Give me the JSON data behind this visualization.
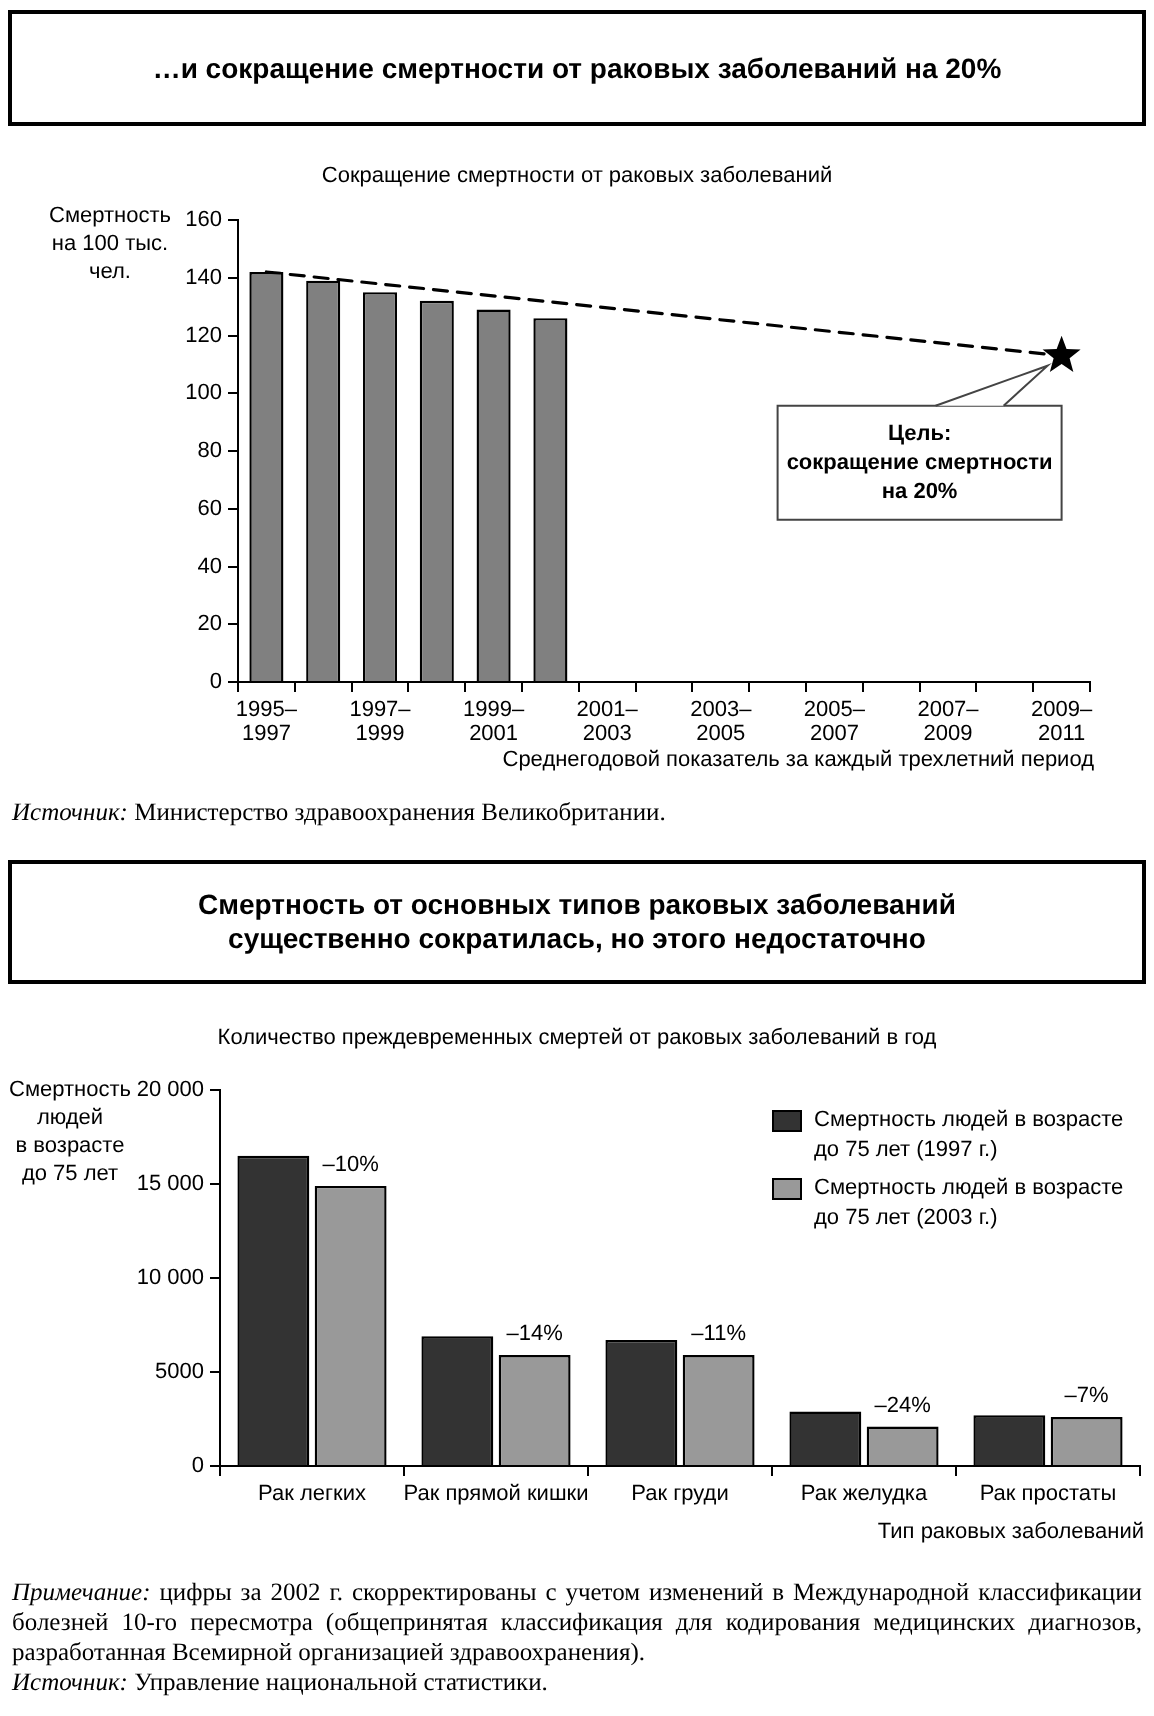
{
  "chart_data": [
    {
      "type": "bar",
      "title": "…и сокращение смертности от раковых заболеваний на 20%",
      "subtitle": "Сокращение смертности от раковых заболеваний",
      "xlabel": "Среднегодовой показатель за каждый трехлетний период",
      "ylabel": "Смертность\nна 100 тыс.\nчел.",
      "categories": [
        "1995–1997",
        null,
        "1997–1999",
        null,
        "1999–2001",
        null,
        "2001–2003",
        null,
        "2003–2005",
        null,
        "2005–2007",
        null,
        "2007–2009",
        null,
        "2009–2011"
      ],
      "series": [
        {
          "type": "bar",
          "color": "#808080",
          "values": [
            142,
            139,
            135,
            132,
            129,
            126,
            null,
            null,
            null,
            null,
            null,
            null,
            null,
            null,
            null
          ]
        },
        {
          "type": "line",
          "color": "#000000",
          "line_style": "dashed",
          "marker": "none",
          "values": [
            142,
            null,
            null,
            null,
            null,
            null,
            null,
            null,
            null,
            null,
            null,
            null,
            null,
            null,
            113
          ]
        },
        {
          "type": "scatter",
          "color": "#000000",
          "marker": "star",
          "values": [
            null,
            null,
            null,
            null,
            null,
            null,
            null,
            null,
            null,
            null,
            null,
            null,
            null,
            null,
            113
          ]
        }
      ],
      "ylim": [
        0,
        160
      ],
      "yticks": [
        0,
        20,
        40,
        60,
        80,
        100,
        120,
        140,
        160
      ],
      "annotations": [
        {
          "text": "Цель:\nсокращение смертности\nна 20%",
          "x": "2009–2011",
          "y": 113
        },
        "Источник: Министерство здравоохранения Великобритании."
      ]
    },
    {
      "type": "bar",
      "title": "Смертность от основных типов раковых заболеваний\nсущественно сократилась, но этого недостаточно",
      "subtitle": "Количество преждевременных смертей от раковых заболеваний в год",
      "xlabel": "Тип раковых заболеваний",
      "ylabel": "Смертность\nлюдей\nв возрасте\nдо 75 лет",
      "categories": [
        "Рак легких",
        "Рак прямой кишки",
        "Рак груди",
        "Рак желудка",
        "Рак простаты"
      ],
      "series": [
        {
          "name": "Смертность людей в возрасте до 75 лет (1997 г.)",
          "color": "#333333",
          "values": [
            16500,
            6900,
            6700,
            2900,
            2700
          ]
        },
        {
          "name": "Смертность людей в возрасте до 75 лет (2003 г.)",
          "color": "#999999",
          "values": [
            14900,
            5900,
            5900,
            2100,
            2600
          ]
        }
      ],
      "ylim": [
        0,
        20000
      ],
      "yticks": [
        0,
        5000,
        {
          "value": 10000,
          "label": "10 000"
        },
        {
          "value": 15000,
          "label": "15 000"
        },
        {
          "value": 20000,
          "label": "20 000"
        }
      ],
      "legend": "top right",
      "annotations": [
        {
          "text": "–10%",
          "x": "Рак легких",
          "y": 14900
        },
        {
          "text": "–14%",
          "x": "Рак прямой кишки",
          "y": 5900
        },
        {
          "text": "–11%",
          "x": "Рак груди",
          "y": 5900
        },
        {
          "text": "–24%",
          "x": "Рак желудка",
          "y": 2100
        },
        {
          "text": "–7%",
          "x": "Рак простаты",
          "y": 2600
        },
        "Примечание: цифры за 2002 г. скорректированы с учетом изменений в Международной классификации болезней 10-го пересмотра (общепринятая классификация для кодирования медицинских диагнозов, разработанная Всемирной организацией здравоохранения).",
        "Источник: Управление национальной статистики."
      ]
    }
  ]
}
